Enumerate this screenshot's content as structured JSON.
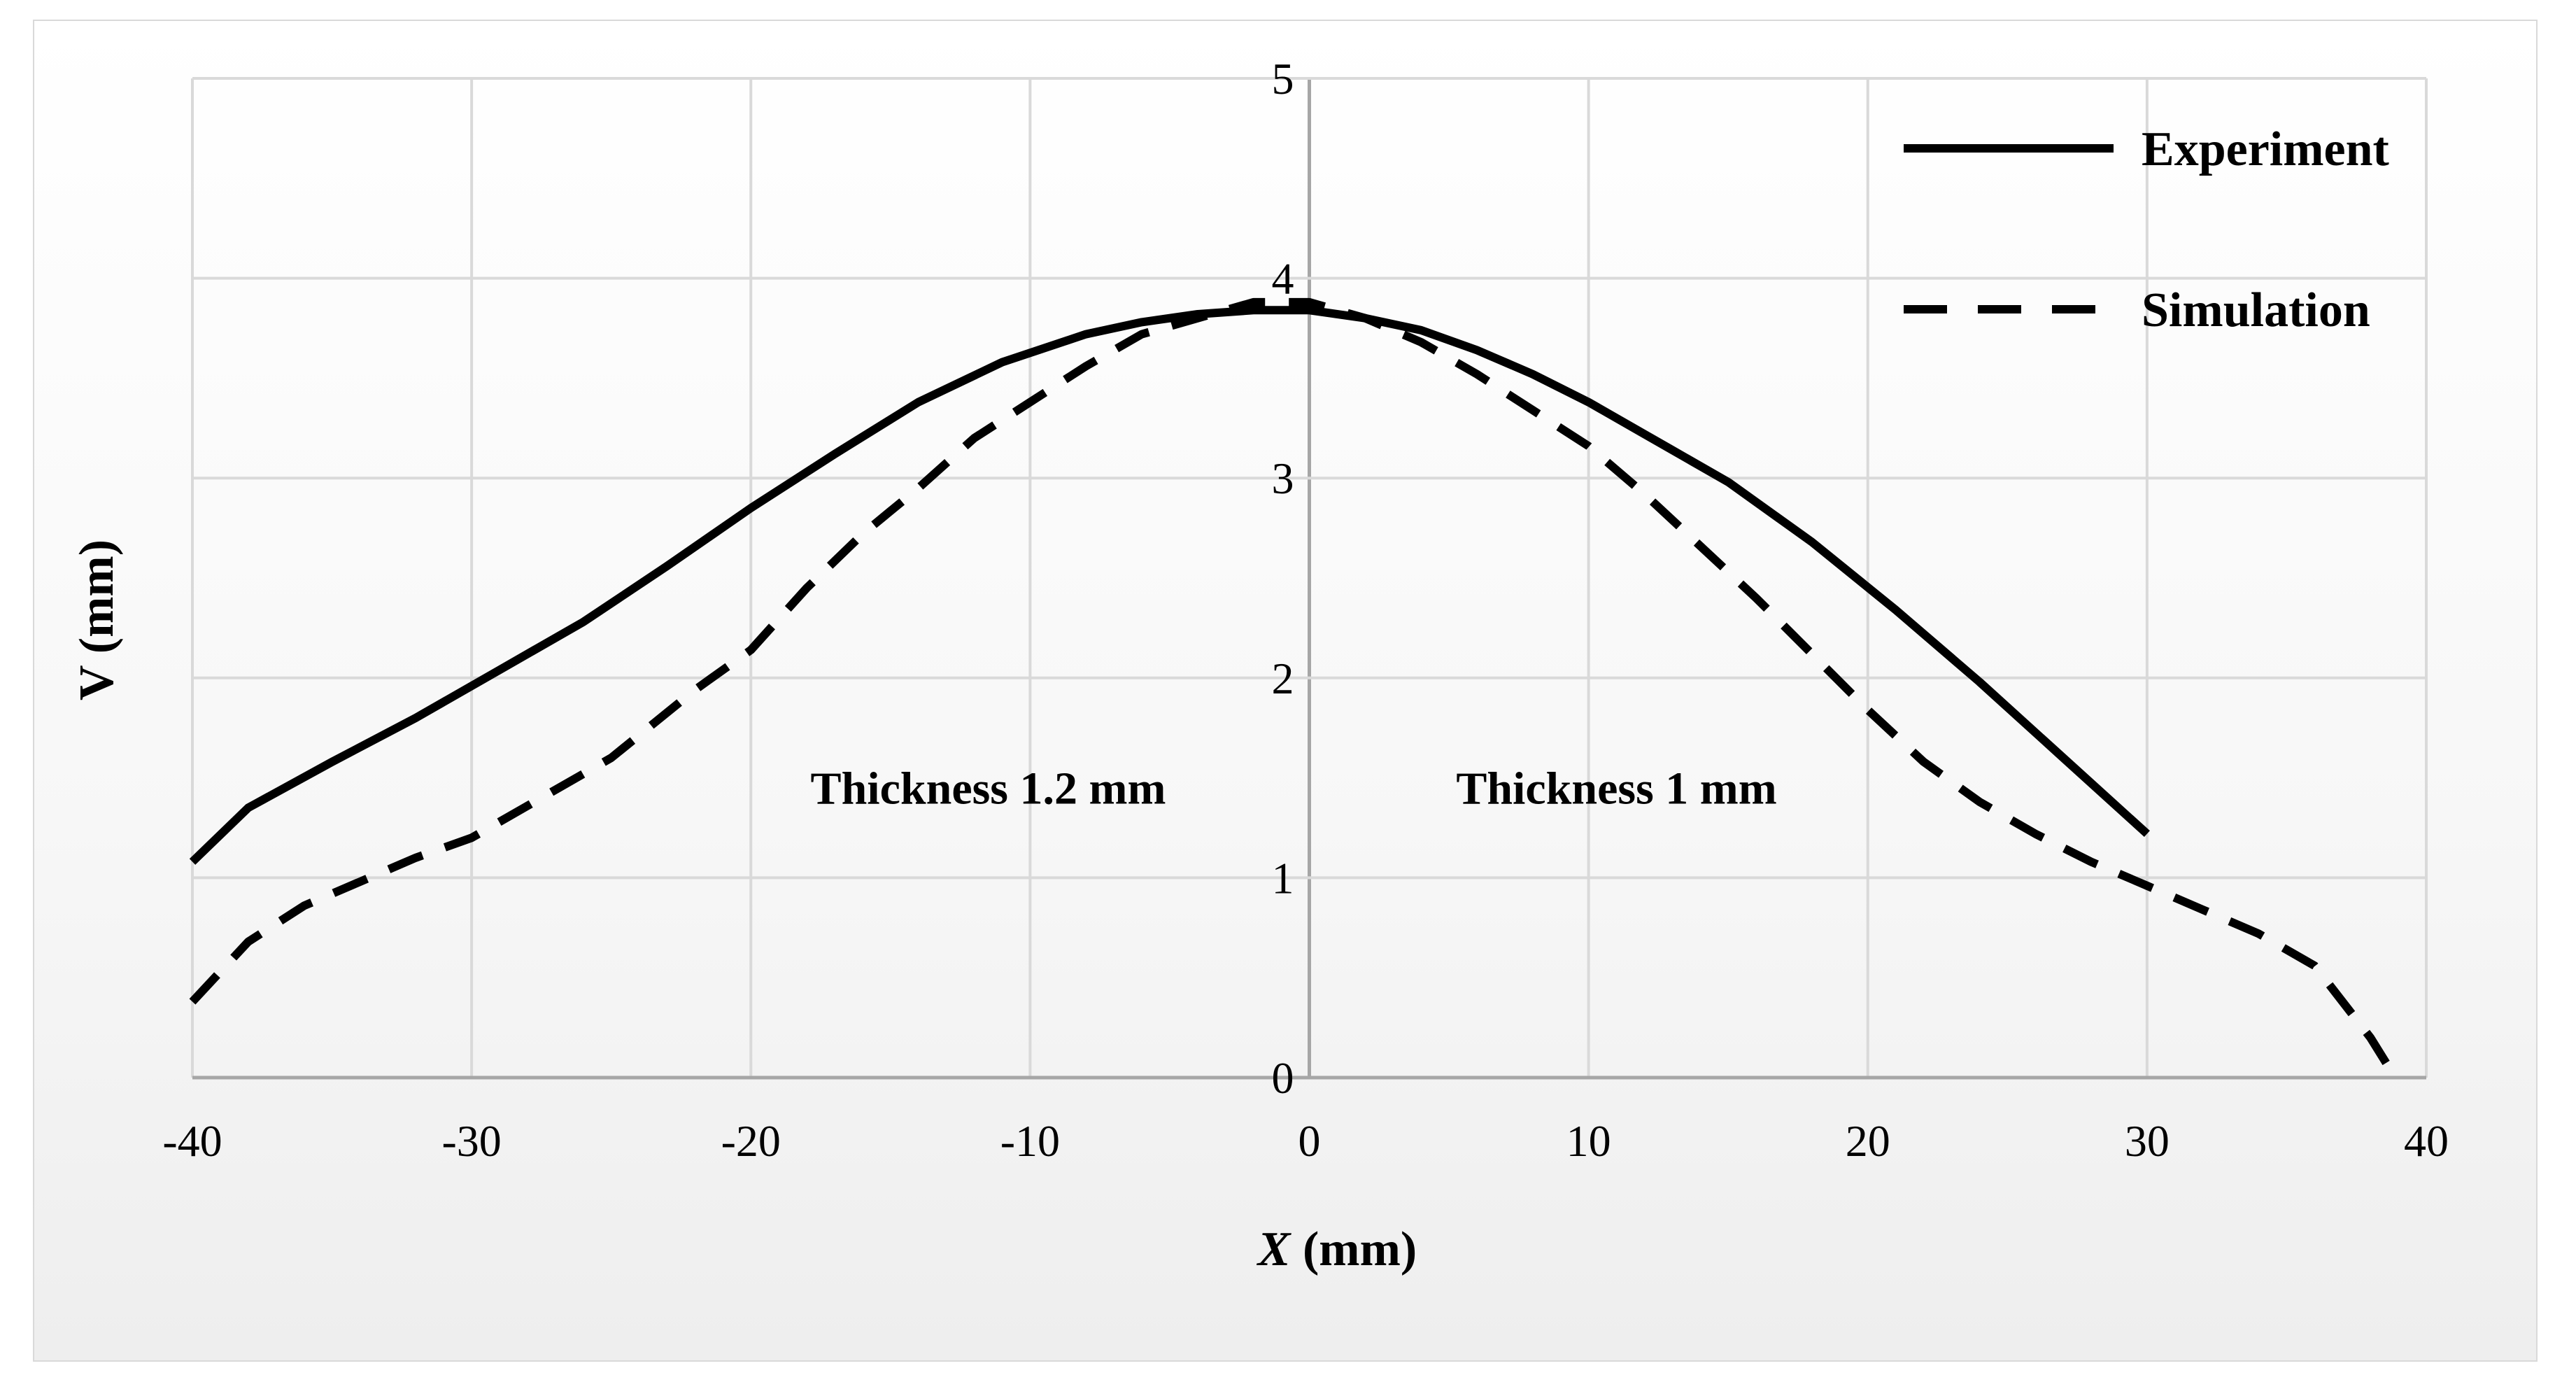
{
  "colors": {
    "series": "#000000",
    "grid": "#d9d9d9",
    "axis": "#a6a6a6"
  },
  "chart_data": {
    "type": "line",
    "title": "",
    "xlabel_prefix": "X",
    "xlabel_suffix": " (mm)",
    "ylabel": "V (mm)",
    "xlim": [
      -40,
      40
    ],
    "ylim": [
      0,
      5
    ],
    "xticks": [
      "-40",
      "-30",
      "-20",
      "-10",
      "0",
      "10",
      "20",
      "30",
      "40"
    ],
    "yticks": [
      "0",
      "1",
      "2",
      "3",
      "4",
      "5"
    ],
    "grid": true,
    "legend_position": "top-right",
    "annotations": [
      {
        "text": "Thickness 1.2 mm",
        "x": -11.5,
        "y": 1.37
      },
      {
        "text": "Thickness 1 mm",
        "x": 11,
        "y": 1.37
      }
    ],
    "series": [
      {
        "name": "Experiment",
        "style": "solid",
        "x": [
          -40,
          -38,
          -35,
          -32,
          -29,
          -26,
          -23,
          -20,
          -17,
          -14,
          -11,
          -8,
          -6,
          -4,
          -2,
          0,
          2,
          4,
          6,
          8,
          10,
          12,
          15,
          18,
          21,
          24,
          27,
          30
        ],
        "y": [
          1.08,
          1.35,
          1.58,
          1.8,
          2.04,
          2.28,
          2.56,
          2.85,
          3.12,
          3.38,
          3.58,
          3.72,
          3.78,
          3.82,
          3.84,
          3.84,
          3.8,
          3.74,
          3.64,
          3.52,
          3.38,
          3.22,
          2.98,
          2.68,
          2.34,
          1.98,
          1.6,
          1.22
        ]
      },
      {
        "name": "Simulation",
        "style": "dashed",
        "x": [
          -40,
          -38,
          -36,
          -34,
          -32,
          -30,
          -28,
          -25,
          -22,
          -20,
          -18,
          -16,
          -14,
          -12,
          -10,
          -8,
          -6,
          -4,
          -2,
          0,
          2,
          4,
          6,
          8,
          10,
          12,
          14,
          16,
          18,
          20,
          22,
          24,
          26,
          28,
          30,
          32,
          34,
          36,
          38,
          38.8
        ],
        "y": [
          0.38,
          0.68,
          0.86,
          0.98,
          1.1,
          1.2,
          1.36,
          1.6,
          1.94,
          2.14,
          2.45,
          2.72,
          2.95,
          3.2,
          3.38,
          3.56,
          3.72,
          3.8,
          3.88,
          3.88,
          3.8,
          3.68,
          3.52,
          3.34,
          3.16,
          2.92,
          2.66,
          2.4,
          2.12,
          1.84,
          1.58,
          1.38,
          1.22,
          1.08,
          0.96,
          0.84,
          0.72,
          0.56,
          0.2,
          0.02
        ]
      }
    ]
  }
}
